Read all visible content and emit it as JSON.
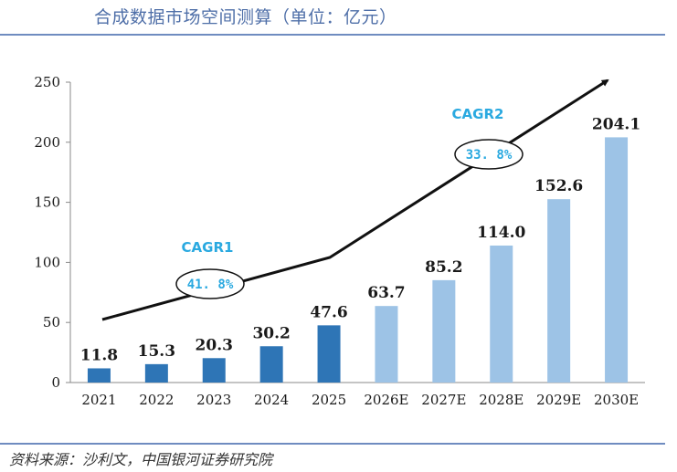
{
  "header": {
    "title": "合成数据市场空间测算（单位：亿元）"
  },
  "source": "资料来源：沙利文，中国银河证券研究院",
  "colors": {
    "actual": "#2e75b6",
    "forecast": "#9dc3e6",
    "cagr": "#2aa9e0"
  },
  "chart_data": {
    "type": "bar",
    "title": "合成数据市场空间测算（单位：亿元）",
    "categories": [
      "2021",
      "2022",
      "2023",
      "2024",
      "2025",
      "2026E",
      "2027E",
      "2028E",
      "2029E",
      "2030E"
    ],
    "values": [
      11.8,
      15.3,
      20.3,
      30.2,
      47.6,
      63.7,
      85.2,
      114.0,
      152.6,
      204.1
    ],
    "value_labels": [
      "11.8",
      "15.3",
      "20.3",
      "30.2",
      "47.6",
      "63.7",
      "85.2",
      "114.0",
      "152.6",
      "204.1"
    ],
    "ylim": [
      0,
      250
    ],
    "yticks": [
      0,
      50,
      100,
      150,
      200,
      250
    ],
    "grid": false,
    "legend": "none",
    "annotations": [
      {
        "label": "CAGR1",
        "value": "41. 8%",
        "span": [
          "2021",
          "2025"
        ]
      },
      {
        "label": "CAGR2",
        "value": "33. 8%",
        "span": [
          "2025",
          "2030E"
        ]
      }
    ]
  }
}
